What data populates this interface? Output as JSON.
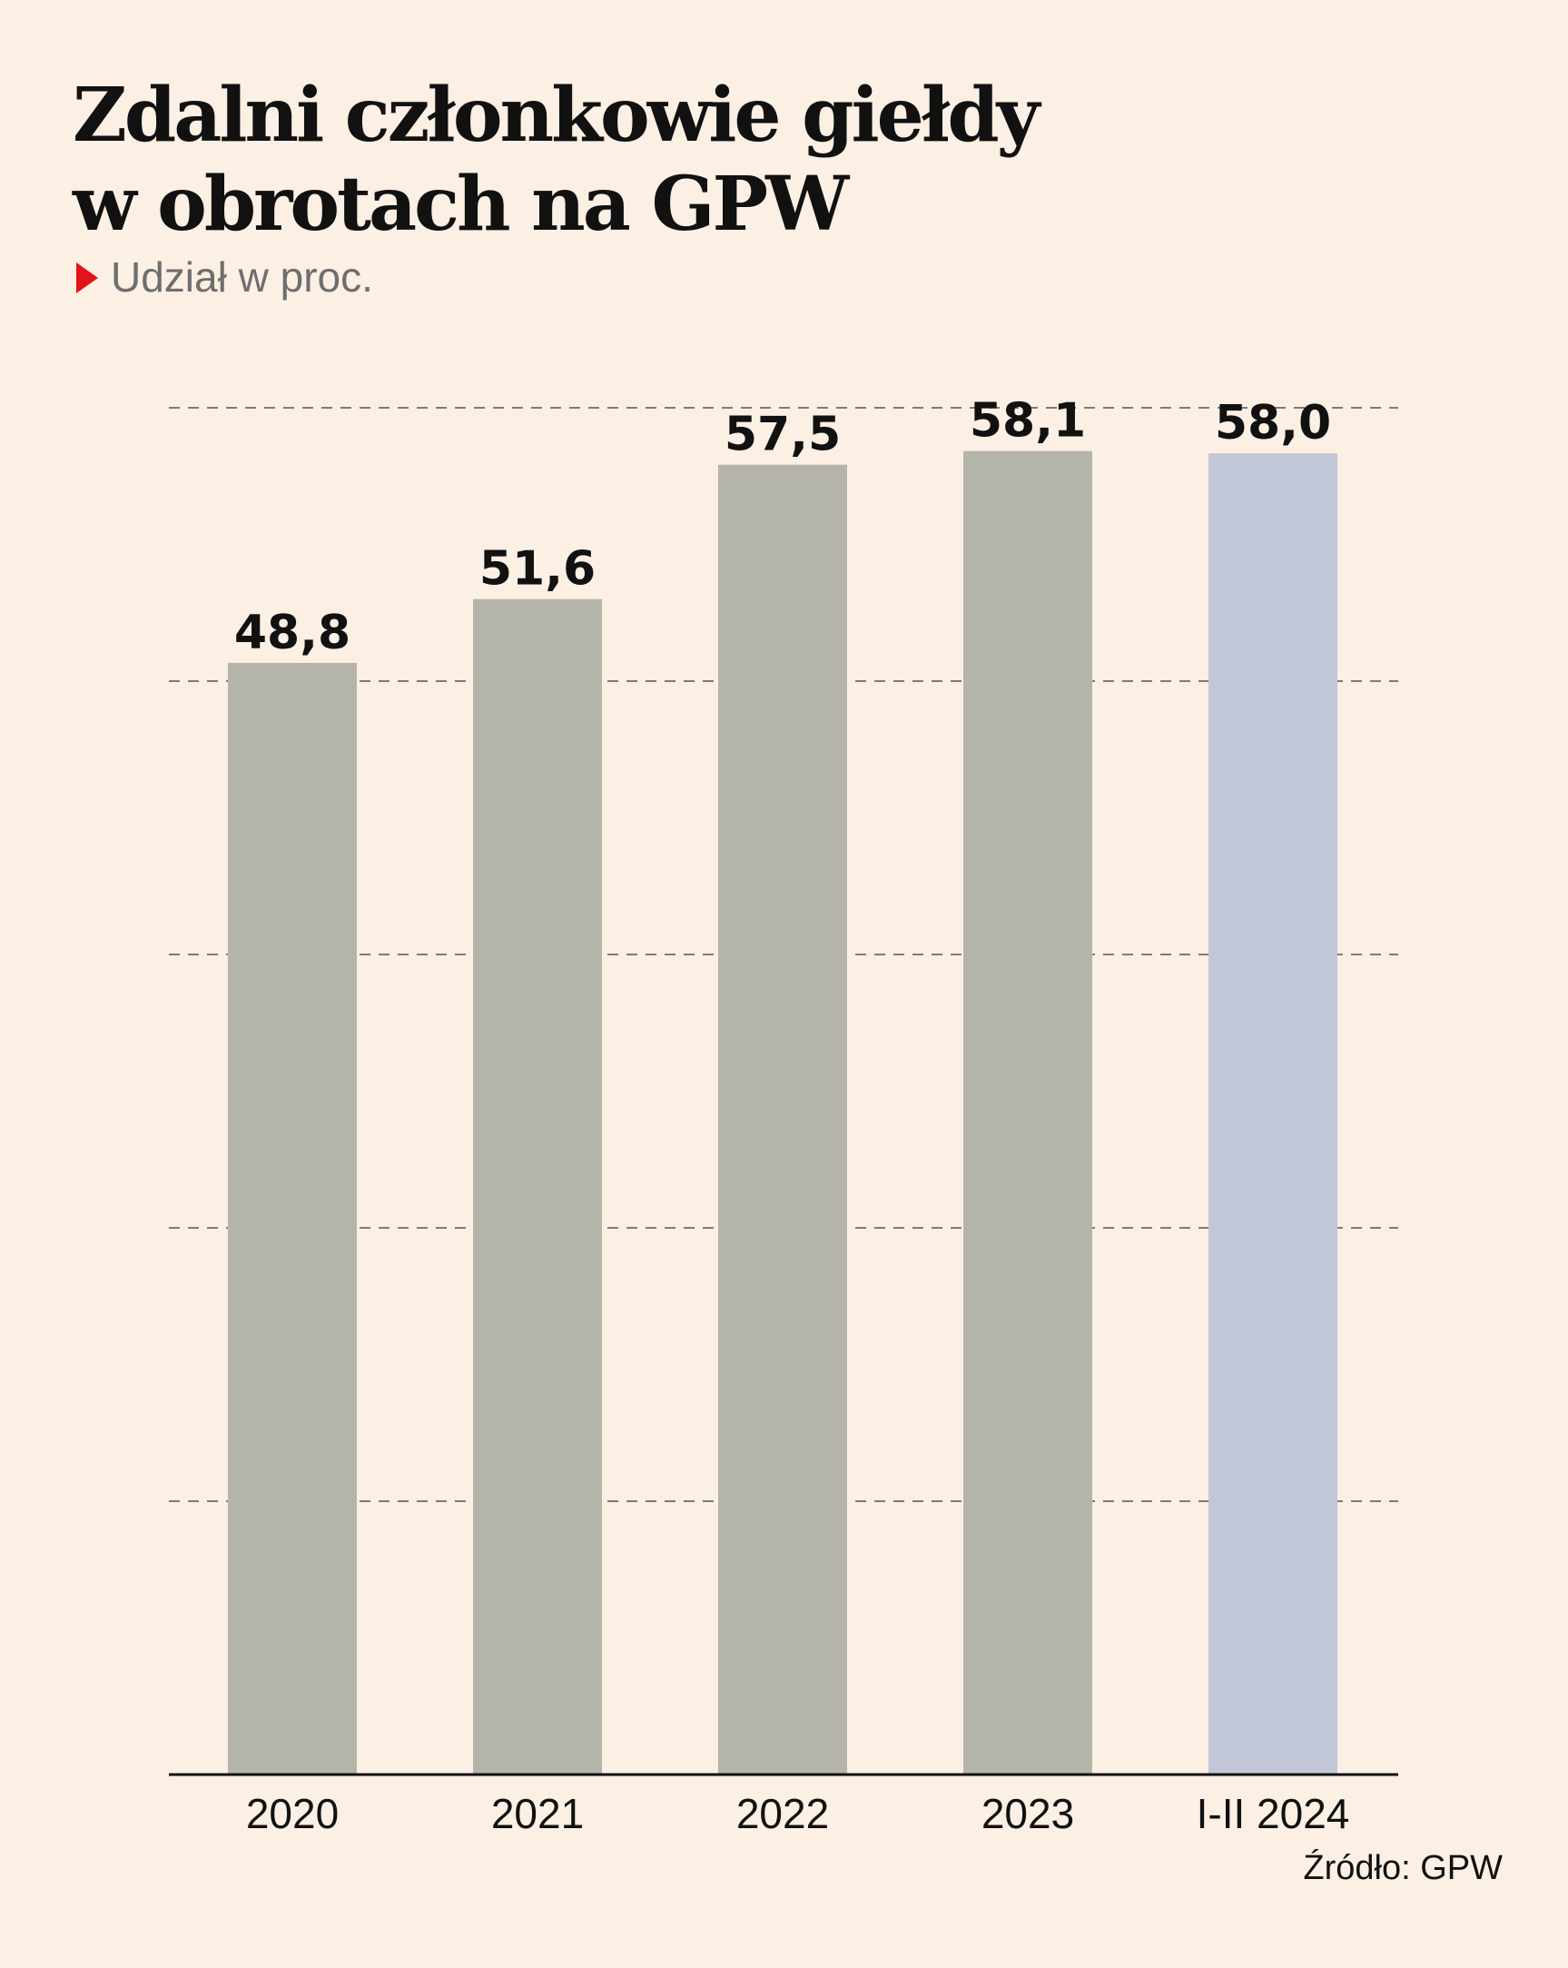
{
  "title_lines": [
    "Zdalni członkowie giełdy",
    "w obrotach na GPW"
  ],
  "subtitle": "Udział w proc.",
  "source": "Źródło: GPW",
  "colors": {
    "background": "#fcefe3",
    "bar": "#b5b4ab",
    "bar_highlight": "#c1c7d7",
    "marker": "#e3121b",
    "gridline": "#555555"
  },
  "chart_data": {
    "type": "bar",
    "categories": [
      "2020",
      "2021",
      "2022",
      "2023",
      "I-II 2024"
    ],
    "values": [
      48.8,
      51.6,
      57.5,
      58.1,
      58.0
    ],
    "value_labels": [
      "48,8",
      "51,6",
      "57,5",
      "58,1",
      "58,0"
    ],
    "highlight_index": 4,
    "title": "Zdalni członkowie giełdy w obrotach na GPW",
    "ylabel": "Udział w proc.",
    "ylim": [
      0,
      60
    ],
    "gridlines": [
      12,
      24,
      36,
      48,
      60
    ],
    "grid": true
  }
}
